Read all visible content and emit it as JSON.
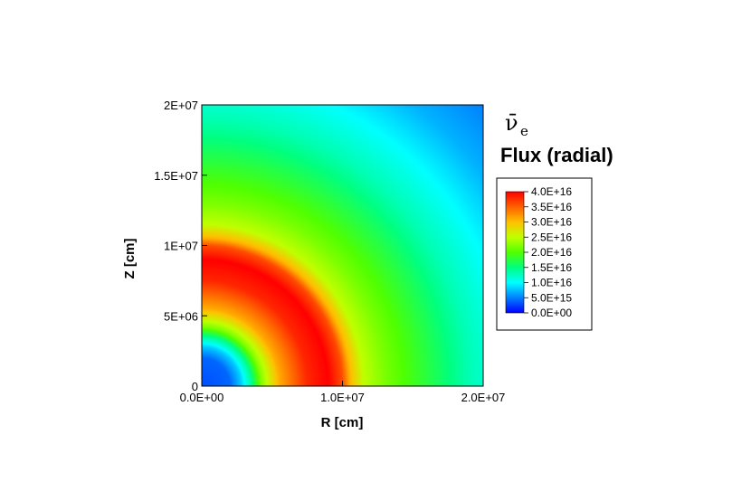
{
  "chart_data": {
    "type": "heatmap",
    "title": "",
    "xlabel": "R [cm]",
    "ylabel": "Z [cm]",
    "xlim": [
      0,
      20000000
    ],
    "ylim": [
      0,
      20000000
    ],
    "x_ticks": [
      {
        "value": 0,
        "label": "0.0E+00"
      },
      {
        "value": 10000000,
        "label": "1.0E+07"
      },
      {
        "value": 20000000,
        "label": "2.0E+07"
      }
    ],
    "y_ticks": [
      {
        "value": 0,
        "label": "0"
      },
      {
        "value": 5000000,
        "label": "5E+06"
      },
      {
        "value": 10000000,
        "label": "1E+07"
      },
      {
        "value": 15000000,
        "label": "1.5E+07"
      },
      {
        "value": 20000000,
        "label": "2E+07"
      }
    ],
    "legend": {
      "symbol": "ν̄",
      "subscript": "e",
      "title": "Flux (radial)",
      "placement": "right",
      "levels": [
        {
          "value": 4e+16,
          "label": "4.0E+16",
          "color": "#ff0000"
        },
        {
          "value": 3.5e+16,
          "label": "3.5E+16",
          "color": "#ff6000"
        },
        {
          "value": 3e+16,
          "label": "3.0E+16",
          "color": "#ffc000"
        },
        {
          "value": 2.5e+16,
          "label": "2.5E+16",
          "color": "#c0ff00"
        },
        {
          "value": 2e+16,
          "label": "2.0E+16",
          "color": "#50ff00"
        },
        {
          "value": 1.5e+16,
          "label": "1.5E+16",
          "color": "#00ff80"
        },
        {
          "value": 1e+16,
          "label": "1.0E+16",
          "color": "#00ffff"
        },
        {
          "value": 5000000000000000.0,
          "label": "5.0E+15",
          "color": "#0080ff"
        },
        {
          "value": 0.0,
          "label": "0.0E+00",
          "color": "#0000ff"
        }
      ]
    },
    "field_profile": {
      "r": [
        0,
        2000000,
        2800000,
        3500000,
        4200000,
        5500000,
        7500000,
        9000000,
        10000000,
        10500000,
        11500000,
        13000000,
        15000000,
        17000000,
        19000000,
        21000000,
        23000000,
        25000000,
        28300000
      ],
      "flux": [
        3000000000000000.0,
        4000000000000000.0,
        8000000000000000.0,
        1.4e+16,
        2.2e+16,
        3.1e+16,
        3.8e+16,
        4e+16,
        3.6e+16,
        3.1e+16,
        2.5e+16,
        2.2e+16,
        1.9e+16,
        1.6e+16,
        1.3e+16,
        1.1e+16,
        9000000000000000.0,
        7000000000000000.0,
        5000000000000000.0
      ]
    }
  }
}
